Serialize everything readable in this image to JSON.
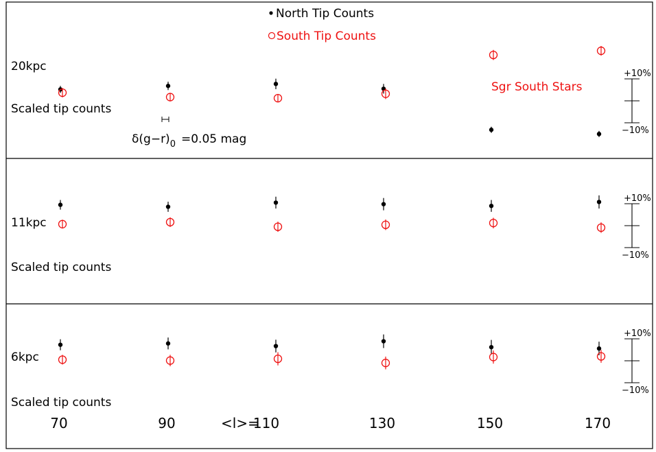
{
  "legend": {
    "north_label": "North Tip Counts",
    "south_label": "South Tip Counts"
  },
  "colors": {
    "north": "#000000",
    "south": "#ee1111"
  },
  "chart_data": {
    "type": "scatter",
    "x_label": "<l>=",
    "x_ticks": [
      "70",
      "90",
      "110",
      "130",
      "150",
      "170"
    ],
    "x_values": [
      70,
      90,
      110,
      130,
      150,
      170
    ],
    "series_names": [
      "North Tip Counts",
      "South Tip Counts"
    ],
    "scale_bar": {
      "top_label": "+10%",
      "bottom_label": "−10%"
    },
    "panels": [
      {
        "name": "20kpc",
        "ylabel": "Scaled tip counts",
        "annotation": "Sgr South Stars",
        "color_error_label": "δ(g−r)",
        "color_error_sub": "0",
        "color_error_value": "=0.05 mag",
        "north": {
          "x": [
            70,
            90,
            110,
            130,
            150,
            170
          ],
          "y": [
            5.2,
            6.8,
            7.7,
            5.5,
            -13.2,
            -15.1
          ],
          "err": [
            1.6,
            1.9,
            2.4,
            2.2,
            1.4,
            1.4
          ]
        },
        "south": {
          "x": [
            70,
            90,
            110,
            130,
            150,
            170
          ],
          "y": [
            3.7,
            1.7,
            1.2,
            3.2,
            20.9,
            22.8
          ],
          "err": [
            2.1,
            1.9,
            1.9,
            2.4,
            2.3,
            2.2
          ]
        }
      },
      {
        "name": "11kpc",
        "ylabel": "Scaled tip counts",
        "north": {
          "x": [
            70,
            90,
            110,
            130,
            150,
            170
          ],
          "y": [
            9.5,
            8.6,
            10.5,
            9.8,
            9.0,
            10.8
          ],
          "err": [
            2.2,
            2.3,
            2.7,
            2.8,
            2.7,
            3.0
          ]
        },
        "south": {
          "x": [
            70,
            90,
            110,
            130,
            150,
            170
          ],
          "y": [
            0.7,
            1.6,
            -0.5,
            0.4,
            1.2,
            -0.9
          ],
          "err": [
            2.0,
            2.2,
            2.3,
            2.4,
            2.4,
            2.4
          ]
        }
      },
      {
        "name": "6kpc",
        "ylabel": "Scaled tip counts",
        "north": {
          "x": [
            70,
            90,
            110,
            130,
            150,
            170
          ],
          "y": [
            7.3,
            7.9,
            6.7,
            8.9,
            6.2,
            5.6
          ],
          "err": [
            2.5,
            2.7,
            2.9,
            3.1,
            3.3,
            3.1
          ]
        },
        "south": {
          "x": [
            70,
            90,
            110,
            130,
            150,
            170
          ],
          "y": [
            0.5,
            0.1,
            0.9,
            -1.0,
            1.7,
            2.0
          ],
          "err": [
            2.2,
            2.6,
            3.0,
            2.9,
            3.0,
            2.9
          ]
        }
      }
    ]
  }
}
